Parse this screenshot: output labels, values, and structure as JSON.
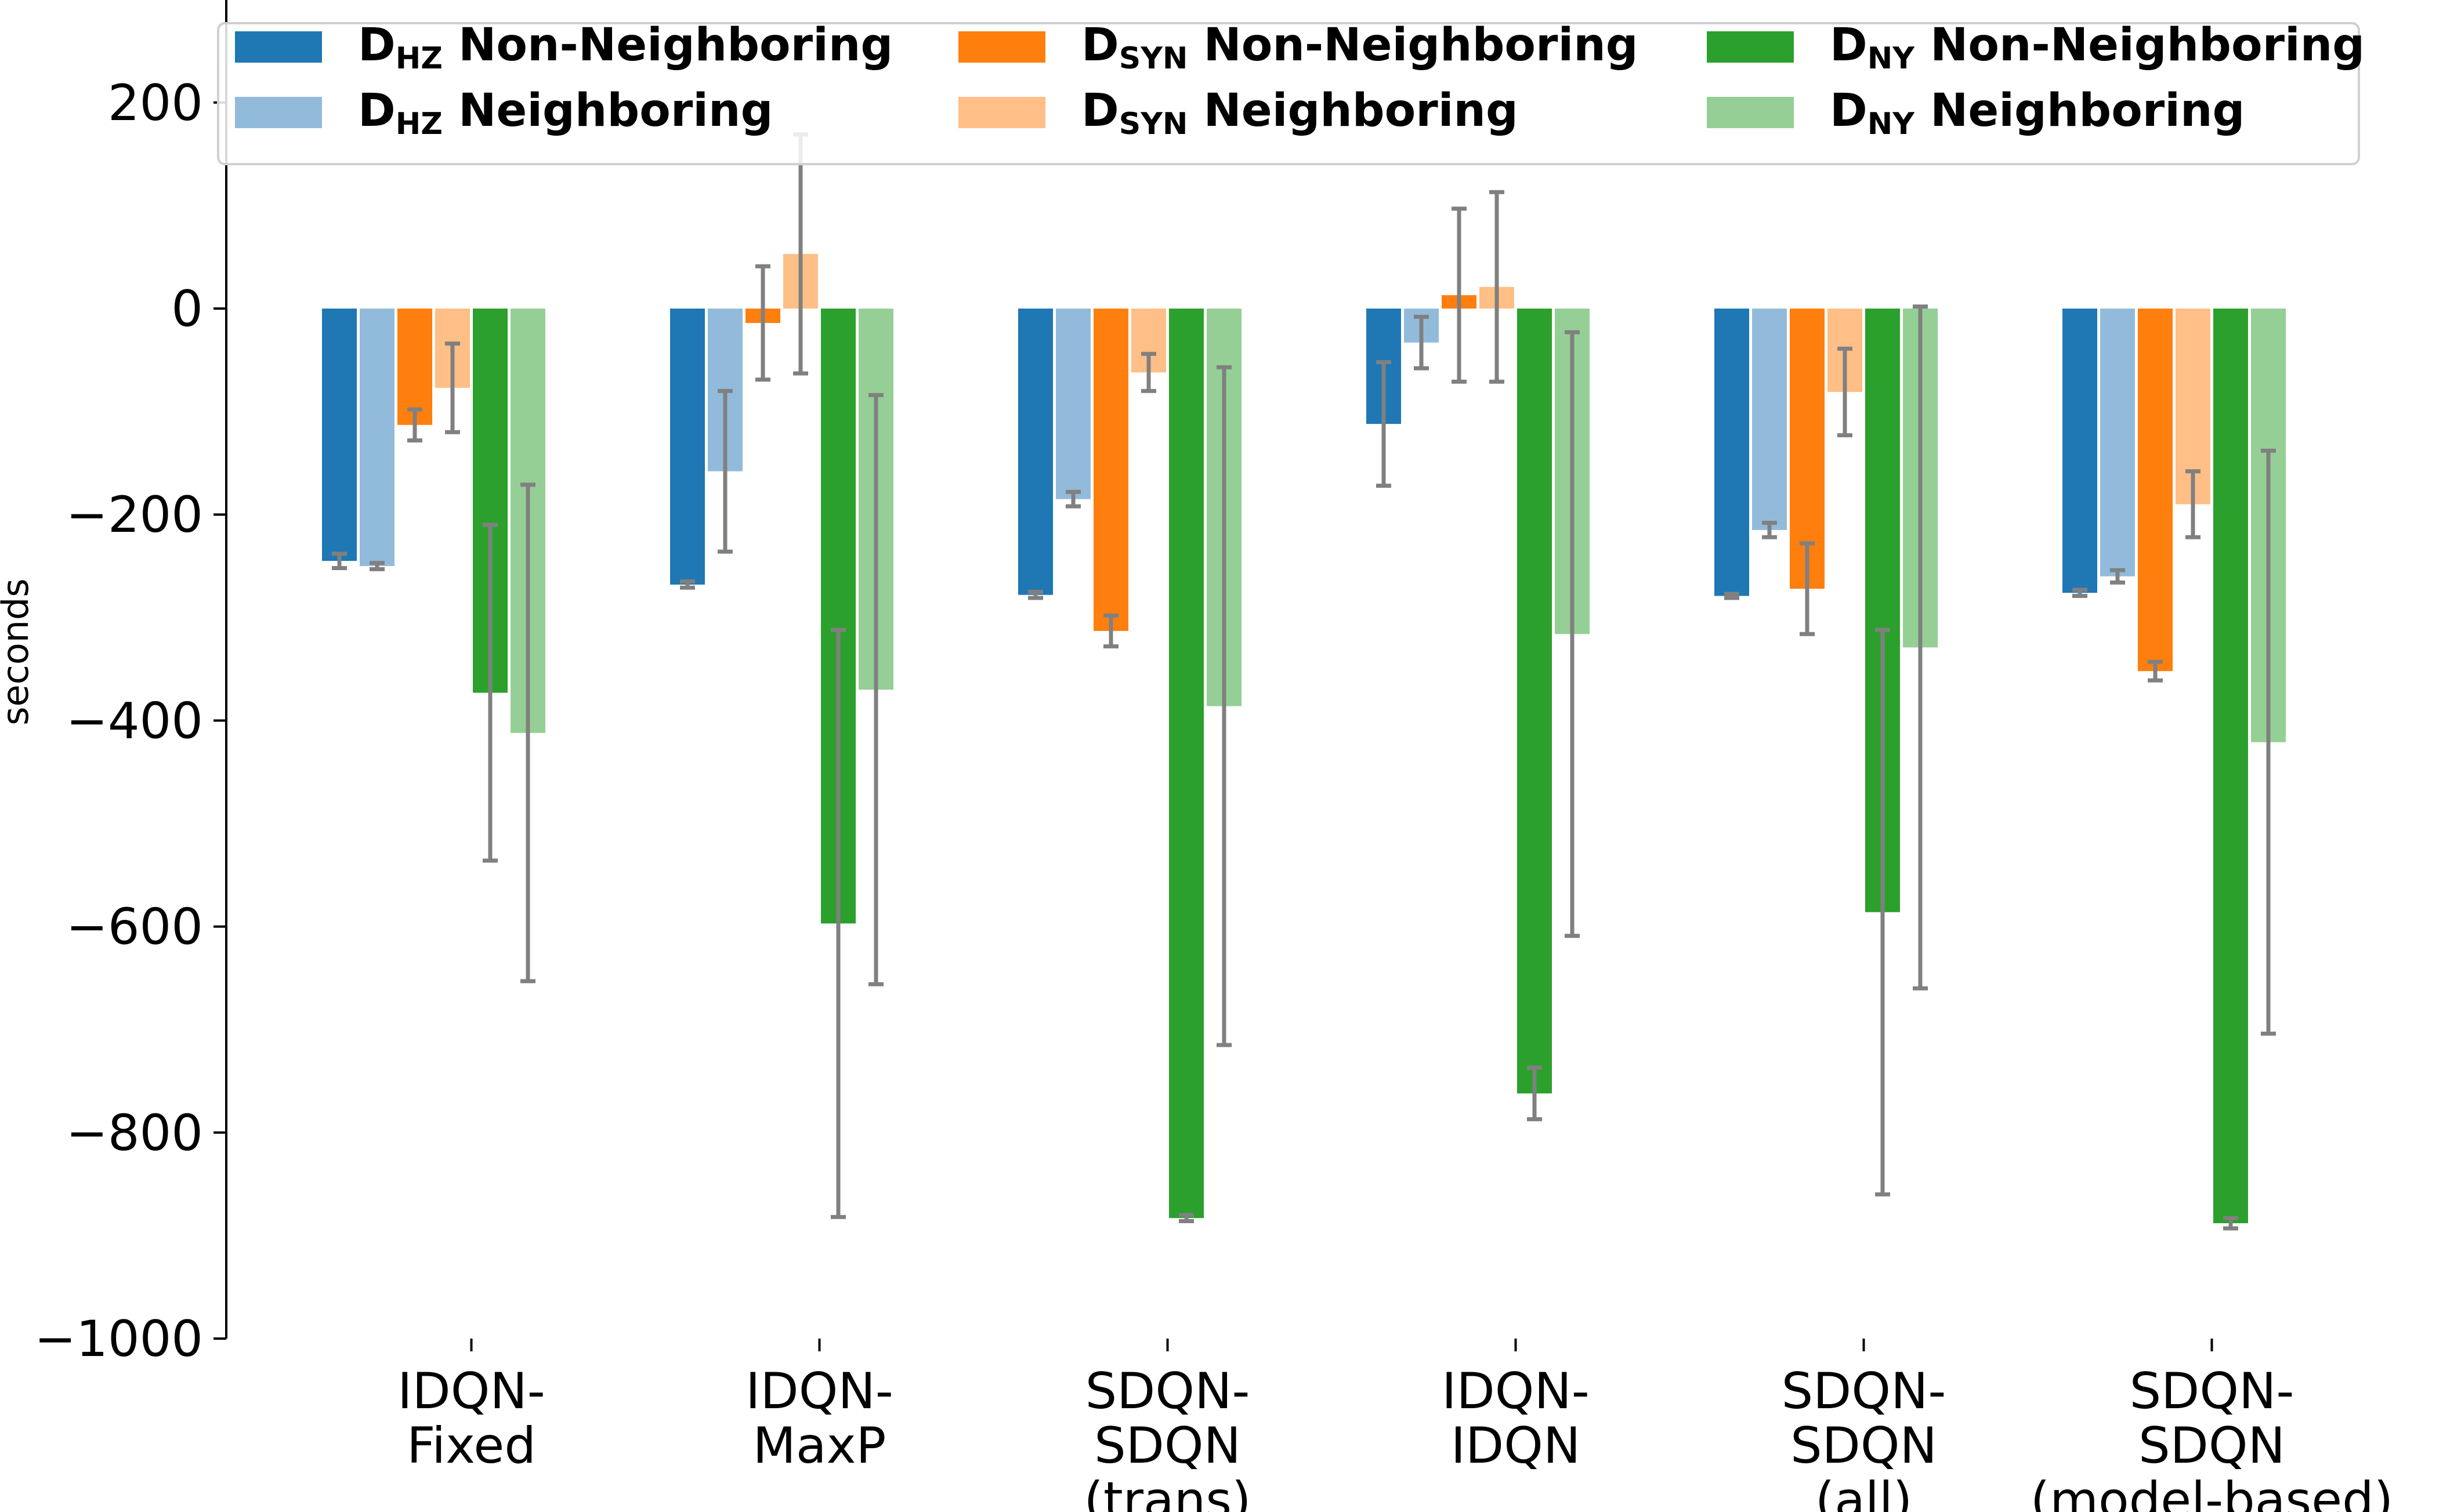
{
  "chart_data": {
    "type": "bar",
    "title": "",
    "xlabel": "",
    "ylabel": "seconds",
    "ylim": [
      -1000,
      280
    ],
    "yticks": [
      200,
      0,
      -200,
      -400,
      -600,
      -800,
      -1000
    ],
    "ytick_labels": [
      "200",
      "0",
      "−200",
      "−400",
      "−600",
      "−800",
      "−1000"
    ],
    "categories": [
      [
        "IDQN-",
        "Fixed"
      ],
      [
        "IDQN-",
        "MaxP"
      ],
      [
        "SDQN-",
        "SDQN",
        "(trans)"
      ],
      [
        "IDQN-",
        "IDQN"
      ],
      [
        "SDQN-",
        "SDQN",
        "(all)"
      ],
      [
        "SDQN-",
        "SDQN",
        "(model-based)"
      ]
    ],
    "legend_position": "top",
    "series": [
      {
        "name": "D_HZ Non-Neighboring",
        "base": "D",
        "sub": "HZ",
        "label": "Non-Neighboring",
        "color": "#1f77b4",
        "values": [
          -245,
          -268,
          -278,
          -112,
          -279,
          -276
        ],
        "errors": [
          7,
          3,
          3,
          60,
          2,
          3
        ]
      },
      {
        "name": "D_HZ Neighboring",
        "base": "D",
        "sub": "HZ",
        "label": "Neighboring",
        "color": "#92bbdb",
        "values": [
          -250,
          -158,
          -185,
          -33,
          -215,
          -260
        ],
        "errors": [
          3,
          78,
          7,
          25,
          7,
          6
        ]
      },
      {
        "name": "D_SYN Non-Neighboring",
        "base": "D",
        "sub": "SYN",
        "label": "Non-Neighboring",
        "color": "#ff7f0e",
        "values": [
          -113,
          -14,
          -313,
          13,
          -272,
          -352
        ],
        "errors": [
          15,
          55,
          15,
          84,
          44,
          9
        ]
      },
      {
        "name": "D_SYN Neighboring",
        "base": "D",
        "sub": "SYN",
        "label": "Neighboring",
        "color": "#ffbf86",
        "values": [
          -77,
          53,
          -62,
          21,
          -81,
          -190
        ],
        "errors": [
          43,
          116,
          18,
          92,
          42,
          32
        ]
      },
      {
        "name": "D_NY Non-Neighboring",
        "base": "D",
        "sub": "NY",
        "label": "Non-Neighboring",
        "color": "#2ca02c",
        "values": [
          -373,
          -597,
          -883,
          -762,
          -586,
          -888
        ],
        "errors": [
          163,
          285,
          3,
          25,
          274,
          5
        ]
      },
      {
        "name": "D_NY Neighboring",
        "base": "D",
        "sub": "NY",
        "label": "Neighboring",
        "color": "#95cf95",
        "values": [
          -412,
          -370,
          -386,
          -316,
          -329,
          -421
        ],
        "errors": [
          241,
          286,
          329,
          293,
          331,
          283
        ]
      }
    ],
    "error_bar_color": "#808080"
  }
}
